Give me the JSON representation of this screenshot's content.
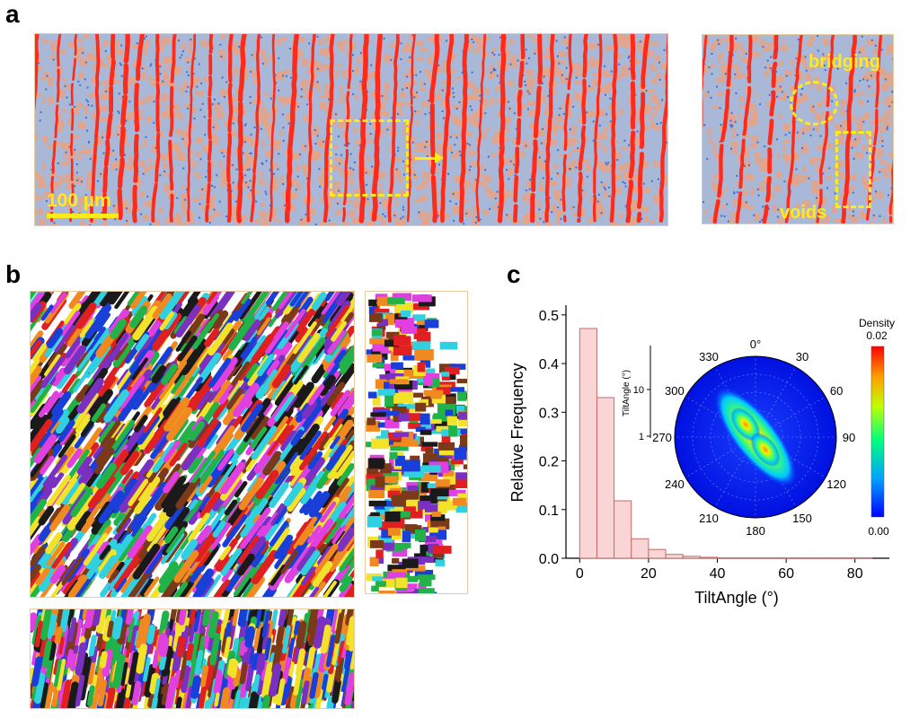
{
  "panels": {
    "a": {
      "letter": "a",
      "scale_bar_label": "100 µm",
      "zoom_labels": {
        "bridging": "bridging",
        "voids": "voids"
      },
      "colors": {
        "lamella": "#ff2a1a",
        "matrix_light": "#a9b8d6",
        "matrix_tan": "#e3a48a",
        "matrix_blue": "#3a6fe0",
        "annotation": "#ffeb1a"
      }
    },
    "b": {
      "letter": "b",
      "grain_colors": [
        "#e02020",
        "#1a3fd8",
        "#f2e22a",
        "#22b24a",
        "#e040e0",
        "#30d0e0",
        "#f08a20",
        "#7a3a1a",
        "#1a1a1a",
        "#7a30c0"
      ]
    },
    "c": {
      "letter": "c"
    }
  },
  "chart_data": [
    {
      "type": "bar",
      "xlabel": "TiltAngle (°)",
      "ylabel": "Relative Frequency",
      "xlim": [
        -4,
        90
      ],
      "ylim": [
        0,
        0.52
      ],
      "xticks": [
        0,
        20,
        40,
        60,
        80
      ],
      "yticks": [
        0.0,
        0.1,
        0.2,
        0.3,
        0.4,
        0.5
      ],
      "ytick_labels": [
        "0.0",
        "0.1",
        "0.2",
        "0.3",
        "0.4",
        "0.5"
      ],
      "bin_width": 5,
      "x": [
        2.5,
        7.5,
        12.5,
        17.5,
        22.5,
        27.5,
        32.5,
        37.5,
        42.5,
        47.5,
        52.5,
        57.5,
        62.5,
        67.5,
        72.5,
        77.5,
        82.5
      ],
      "values": [
        0.472,
        0.33,
        0.118,
        0.04,
        0.018,
        0.008,
        0.004,
        0.002,
        0.001,
        0.001,
        0.001,
        0.001,
        0.0005,
        0.0005,
        0.0005,
        0.0005,
        0.001
      ],
      "bar_fill": "#f9d5d5",
      "bar_stroke": "#c96b6b"
    },
    {
      "type": "polar-density",
      "angle_labels": [
        "0°",
        "30",
        "60",
        "90",
        "120",
        "150",
        "180",
        "210",
        "240",
        "270",
        "300",
        "330"
      ],
      "radial_axis_label": "TiltAngle (°)",
      "radial_tick_labels": [
        "1",
        "10"
      ],
      "colorbar": {
        "title": "Density",
        "max_label": "0.02",
        "min_label": "0.00",
        "min": 0.0,
        "max": 0.02
      },
      "peak_azimuth_deg": 330,
      "colors": {
        "low": "#0000ff",
        "mid": "#00ff80",
        "high": "#ff0000"
      }
    }
  ]
}
